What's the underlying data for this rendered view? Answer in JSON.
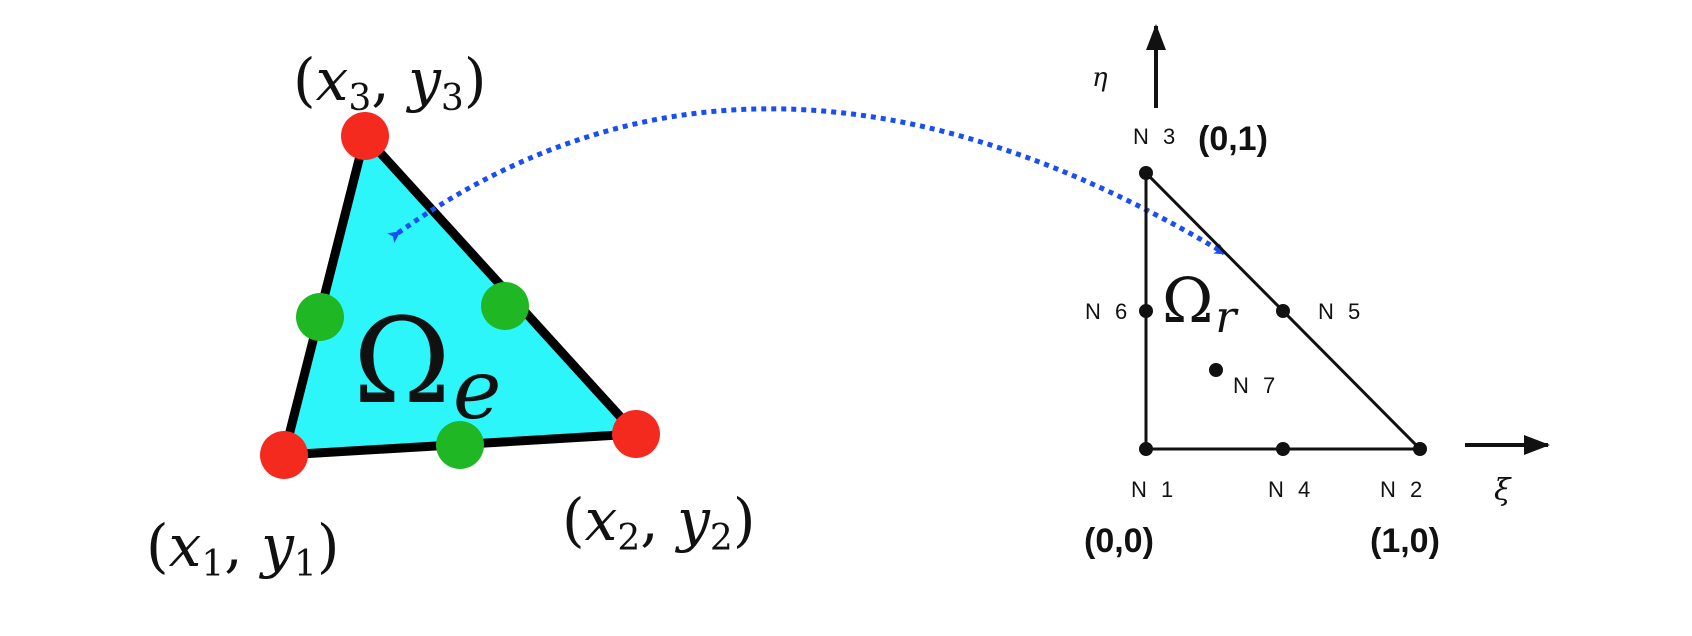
{
  "physical_element": {
    "region_symbol": "Ω",
    "region_subscript": "e",
    "vertex_labels": [
      {
        "open": "(",
        "x": "x",
        "xs": "1",
        "sep": ", ",
        "y": "y",
        "ys": "1",
        "close": ")"
      },
      {
        "open": "(",
        "x": "x",
        "xs": "2",
        "sep": ", ",
        "y": "y",
        "ys": "2",
        "close": ")"
      },
      {
        "open": "(",
        "x": "x",
        "xs": "3",
        "sep": ", ",
        "y": "y",
        "ys": "3",
        "close": ")"
      }
    ],
    "fill_color": "#2df6fb",
    "edge_color": "#000000",
    "vertex_node_color": "#f52a1f",
    "midside_node_color": "#1fb824"
  },
  "reference_element": {
    "region_symbol": "Ω",
    "region_subscript": "r",
    "axis_xi": "ξ",
    "axis_eta": "η",
    "nodes": {
      "n1": "N 1",
      "n2": "N 2",
      "n3": "N 3",
      "n4": "N 4",
      "n5": "N 5",
      "n6": "N 6",
      "n7": "N 7"
    },
    "coords": {
      "origin": "(0,0)",
      "xi_end": "(1,0)",
      "eta_end": "(0,1)"
    }
  },
  "mapping_arrow_color": "#1a4ef5"
}
